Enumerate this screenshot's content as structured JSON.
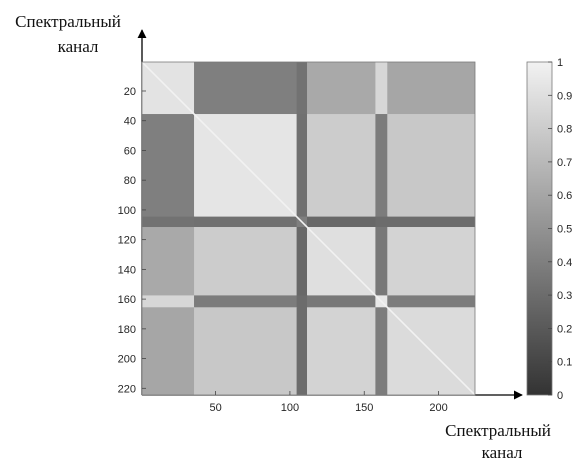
{
  "chart_data": {
    "type": "heatmap",
    "title": "",
    "ylabel_lines": [
      "Спектральный",
      "канал"
    ],
    "xlabel_lines": [
      "Спектральный",
      "канал"
    ],
    "x_range": [
      1,
      224
    ],
    "y_range": [
      1,
      224
    ],
    "y_direction": "top-to-bottom",
    "x_ticks": [
      "50",
      "100",
      "150",
      "200"
    ],
    "x_tick_values": [
      50,
      100,
      150,
      200
    ],
    "y_ticks": [
      "20",
      "40",
      "60",
      "80",
      "100",
      "120",
      "140",
      "160",
      "180",
      "200",
      "220"
    ],
    "y_tick_values": [
      20,
      40,
      60,
      80,
      100,
      120,
      140,
      160,
      180,
      200,
      220
    ],
    "colorbar": {
      "colormap": "gray",
      "range": [
        0,
        1
      ],
      "ticks": [
        "0",
        "0.1",
        "0.2",
        "0.3",
        "0.4",
        "0.5",
        "0.6",
        "0.7",
        "0.8",
        "0.9",
        "1"
      ],
      "tick_values": [
        0,
        0.1,
        0.2,
        0.3,
        0.4,
        0.5,
        0.6,
        0.7,
        0.8,
        0.9,
        1
      ]
    },
    "channel_blocks": [
      {
        "channels": [
          1,
          35
        ],
        "self": 0.92
      },
      {
        "channels": [
          36,
          104
        ],
        "self": 0.93
      },
      {
        "channels": [
          105,
          111
        ],
        "self": 0.4
      },
      {
        "channels": [
          112,
          157
        ],
        "self": 0.9
      },
      {
        "channels": [
          158,
          165
        ],
        "self": 0.95
      },
      {
        "channels": [
          166,
          224
        ],
        "self": 0.88
      }
    ],
    "block_correlation": [
      [
        0.92,
        0.4,
        0.33,
        0.62,
        0.86,
        0.6
      ],
      [
        0.4,
        0.93,
        0.32,
        0.8,
        0.38,
        0.78
      ],
      [
        0.33,
        0.32,
        0.4,
        0.28,
        0.3,
        0.3
      ],
      [
        0.62,
        0.8,
        0.28,
        0.9,
        0.36,
        0.84
      ],
      [
        0.86,
        0.38,
        0.3,
        0.36,
        0.95,
        0.38
      ],
      [
        0.6,
        0.78,
        0.3,
        0.84,
        0.38,
        0.88
      ]
    ]
  }
}
